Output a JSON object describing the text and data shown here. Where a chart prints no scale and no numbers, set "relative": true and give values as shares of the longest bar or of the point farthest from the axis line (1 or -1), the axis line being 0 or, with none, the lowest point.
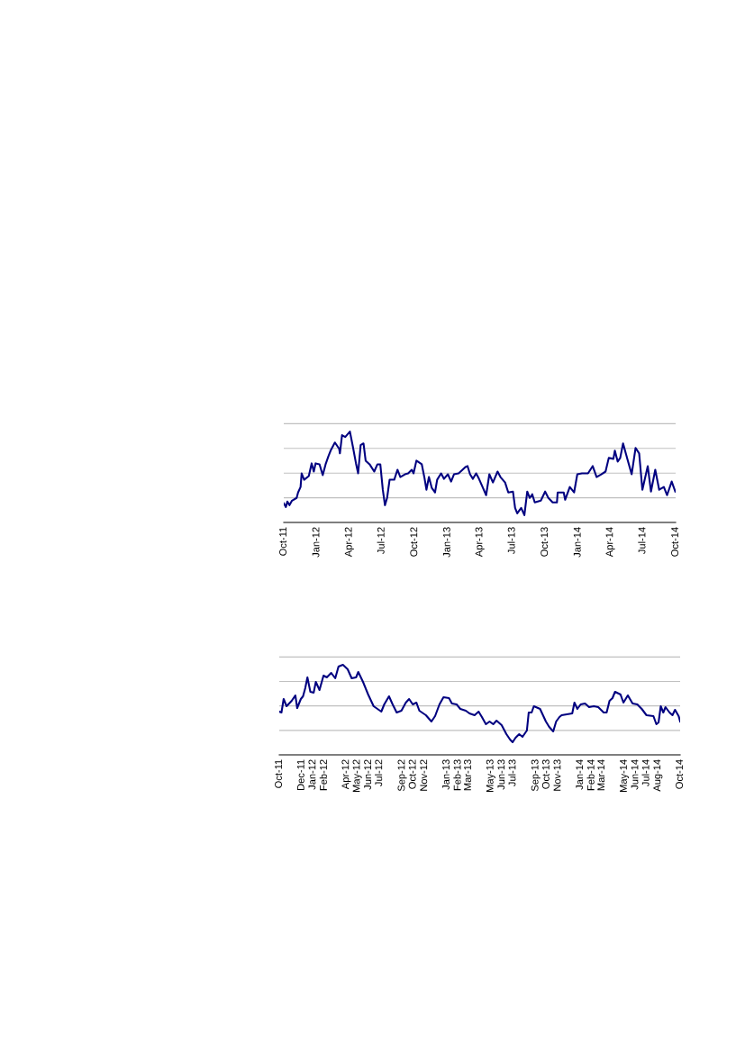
{
  "chart_data": [
    {
      "type": "line",
      "relative": true,
      "xlim": [
        "2011-10-01",
        "2014-10-01"
      ],
      "xticks": [
        {
          "value": "2011-10-01",
          "label": "Oct-11"
        },
        {
          "value": "2012-01-01",
          "label": "Jan-12"
        },
        {
          "value": "2012-04-01",
          "label": "Apr-12"
        },
        {
          "value": "2012-07-01",
          "label": "Jul-12"
        },
        {
          "value": "2012-10-01",
          "label": "Oct-12"
        },
        {
          "value": "2013-01-01",
          "label": "Jan-13"
        },
        {
          "value": "2013-04-01",
          "label": "Apr-13"
        },
        {
          "value": "2013-07-01",
          "label": "Jul-13"
        },
        {
          "value": "2013-10-01",
          "label": "Oct-13"
        },
        {
          "value": "2014-01-01",
          "label": "Jan-14"
        },
        {
          "value": "2014-04-01",
          "label": "Apr-14"
        },
        {
          "value": "2014-07-01",
          "label": "Jul-14"
        },
        {
          "value": "2014-10-01",
          "label": "Oct-14"
        }
      ],
      "tick_labels": "x",
      "series": [
        {
          "color": "#000080",
          "x": [
            "2011-10-01",
            "2011-10-07",
            "2011-10-11",
            "2011-10-17",
            "2011-10-24",
            "2011-11-06",
            "2011-11-10",
            "2011-11-17",
            "2011-11-20",
            "2011-11-27",
            "2011-12-10",
            "2011-12-18",
            "2011-12-24",
            "2011-12-29",
            "2012-01-09",
            "2012-01-18",
            "2012-01-26",
            "2012-02-03",
            "2012-02-09",
            "2012-02-21",
            "2012-03-04",
            "2012-03-06",
            "2012-03-12",
            "2012-03-21",
            "2012-04-03",
            "2012-04-11",
            "2012-04-20",
            "2012-04-26",
            "2012-05-03",
            "2012-05-11",
            "2012-05-17",
            "2012-05-28",
            "2012-06-10",
            "2012-06-19",
            "2012-06-27",
            "2012-07-04",
            "2012-07-10",
            "2012-07-16",
            "2012-07-23",
            "2012-08-05",
            "2012-08-14",
            "2012-08-22",
            "2012-09-04",
            "2012-09-13",
            "2012-09-23",
            "2012-09-28",
            "2012-10-06",
            "2012-10-21",
            "2012-10-29",
            "2012-11-03",
            "2012-11-10",
            "2012-11-18",
            "2012-11-27",
            "2012-12-03",
            "2012-12-14",
            "2012-12-22",
            "2013-01-02",
            "2013-01-11",
            "2013-01-19",
            "2013-02-01",
            "2013-02-12",
            "2013-02-20",
            "2013-02-26",
            "2013-03-05",
            "2013-03-13",
            "2013-03-22",
            "2013-03-30",
            "2013-04-09",
            "2013-04-19",
            "2013-04-28",
            "2013-05-08",
            "2013-05-21",
            "2013-05-29",
            "2013-06-11",
            "2013-06-20",
            "2013-07-03",
            "2013-07-09",
            "2013-07-15",
            "2013-07-26",
            "2013-08-04",
            "2013-08-12",
            "2013-08-19",
            "2013-08-26",
            "2013-09-02",
            "2013-09-19",
            "2013-10-01",
            "2013-10-10",
            "2013-10-22",
            "2013-11-03",
            "2013-11-05",
            "2013-11-22",
            "2013-11-26",
            "2013-12-09",
            "2013-12-21",
            "2013-12-30",
            "2014-01-12",
            "2014-01-29",
            "2014-02-11",
            "2014-02-22",
            "2014-03-07",
            "2014-03-19",
            "2014-03-28",
            "2014-04-10",
            "2014-04-14",
            "2014-04-22",
            "2014-04-29",
            "2014-05-07",
            "2014-05-16",
            "2014-05-31",
            "2014-06-11",
            "2014-06-21",
            "2014-06-30",
            "2014-07-15",
            "2014-07-24",
            "2014-08-05",
            "2014-08-16",
            "2014-08-29",
            "2014-09-07",
            "2014-09-20",
            "2014-09-30"
          ],
          "values": [
            0.21,
            0.17,
            0.23,
            0.19,
            0.24,
            0.27,
            0.33,
            0.39,
            0.54,
            0.47,
            0.51,
            0.65,
            0.56,
            0.65,
            0.64,
            0.52,
            0.64,
            0.73,
            0.79,
            0.88,
            0.81,
            0.76,
            0.96,
            0.94,
            1.0,
            0.84,
            0.65,
            0.54,
            0.85,
            0.87,
            0.68,
            0.64,
            0.56,
            0.64,
            0.64,
            0.36,
            0.19,
            0.27,
            0.47,
            0.47,
            0.58,
            0.5,
            0.53,
            0.54,
            0.58,
            0.54,
            0.68,
            0.64,
            0.48,
            0.36,
            0.5,
            0.38,
            0.33,
            0.47,
            0.54,
            0.48,
            0.53,
            0.45,
            0.53,
            0.54,
            0.58,
            0.61,
            0.62,
            0.53,
            0.48,
            0.54,
            0.48,
            0.39,
            0.3,
            0.53,
            0.44,
            0.56,
            0.5,
            0.44,
            0.33,
            0.34,
            0.16,
            0.1,
            0.16,
            0.08,
            0.34,
            0.27,
            0.31,
            0.22,
            0.24,
            0.34,
            0.27,
            0.22,
            0.22,
            0.33,
            0.33,
            0.25,
            0.39,
            0.33,
            0.53,
            0.54,
            0.54,
            0.62,
            0.5,
            0.53,
            0.56,
            0.71,
            0.7,
            0.79,
            0.67,
            0.71,
            0.87,
            0.74,
            0.53,
            0.82,
            0.76,
            0.36,
            0.62,
            0.34,
            0.58,
            0.36,
            0.39,
            0.3,
            0.45,
            0.34
          ]
        }
      ]
    },
    {
      "type": "line",
      "relative": true,
      "xlim": [
        "2011-10-01",
        "2014-10-01"
      ],
      "xticks": [
        {
          "value": "2011-10-01",
          "label": "Oct-11"
        },
        {
          "value": "2011-12-01",
          "label": "Dec-11"
        },
        {
          "value": "2012-01-01",
          "label": "Jan-12"
        },
        {
          "value": "2012-02-01",
          "label": "Feb-12"
        },
        {
          "value": "2012-04-01",
          "label": "Apr-12"
        },
        {
          "value": "2012-05-01",
          "label": "May-12"
        },
        {
          "value": "2012-06-01",
          "label": "Jun-12"
        },
        {
          "value": "2012-07-01",
          "label": "Jul-12"
        },
        {
          "value": "2012-09-01",
          "label": "Sep-12"
        },
        {
          "value": "2012-10-01",
          "label": "Oct-12"
        },
        {
          "value": "2012-11-01",
          "label": "Nov-12"
        },
        {
          "value": "2013-01-01",
          "label": "Jan-13"
        },
        {
          "value": "2013-02-01",
          "label": "Feb-13"
        },
        {
          "value": "2013-03-01",
          "label": "Mar-13"
        },
        {
          "value": "2013-05-01",
          "label": "May-13"
        },
        {
          "value": "2013-06-01",
          "label": "Jun-13"
        },
        {
          "value": "2013-07-01",
          "label": "Jul-13"
        },
        {
          "value": "2013-09-01",
          "label": "Sep-13"
        },
        {
          "value": "2013-10-01",
          "label": "Oct-13"
        },
        {
          "value": "2013-11-01",
          "label": "Nov-13"
        },
        {
          "value": "2014-01-01",
          "label": "Jan-14"
        },
        {
          "value": "2014-02-01",
          "label": "Feb-14"
        },
        {
          "value": "2014-03-01",
          "label": "Mar-14"
        },
        {
          "value": "2014-05-01",
          "label": "May-14"
        },
        {
          "value": "2014-06-01",
          "label": "Jun-14"
        },
        {
          "value": "2014-07-01",
          "label": "Jul-14"
        },
        {
          "value": "2014-08-01",
          "label": "Aug-14"
        },
        {
          "value": "2014-10-01",
          "label": "Oct-14"
        }
      ],
      "tick_labels": "x",
      "series": [
        {
          "color": "#000080",
          "x": [
            "2011-10-01",
            "2011-10-07",
            "2011-10-13",
            "2011-10-21",
            "2011-11-04",
            "2011-11-14",
            "2011-11-19",
            "2011-11-29",
            "2011-12-05",
            "2011-12-11",
            "2011-12-17",
            "2011-12-25",
            "2012-01-03",
            "2012-01-09",
            "2012-01-19",
            "2012-01-30",
            "2012-02-08",
            "2012-02-20",
            "2012-03-02",
            "2012-03-11",
            "2012-03-23",
            "2012-04-05",
            "2012-04-16",
            "2012-04-28",
            "2012-05-04",
            "2012-05-17",
            "2012-05-31",
            "2012-06-15",
            "2012-07-06",
            "2012-07-14",
            "2012-07-27",
            "2012-08-06",
            "2012-08-17",
            "2012-08-30",
            "2012-09-11",
            "2012-09-20",
            "2012-09-30",
            "2012-10-10",
            "2012-10-18",
            "2012-11-05",
            "2012-11-20",
            "2012-11-30",
            "2012-12-12",
            "2012-12-23",
            "2013-01-07",
            "2013-01-15",
            "2013-01-28",
            "2013-02-07",
            "2013-02-22",
            "2013-03-04",
            "2013-03-18",
            "2013-03-29",
            "2013-04-07",
            "2013-04-18",
            "2013-04-28",
            "2013-05-08",
            "2013-05-17",
            "2013-05-31",
            "2013-06-13",
            "2013-06-23",
            "2013-06-30",
            "2013-07-08",
            "2013-07-18",
            "2013-07-27",
            "2013-08-08",
            "2013-08-13",
            "2013-08-21",
            "2013-08-27",
            "2013-09-13",
            "2013-09-29",
            "2013-10-08",
            "2013-10-19",
            "2013-10-27",
            "2013-11-05",
            "2013-11-11",
            "2013-12-10",
            "2013-12-16",
            "2013-12-24",
            "2014-01-02",
            "2014-01-14",
            "2014-01-25",
            "2014-02-07",
            "2014-02-19",
            "2014-03-06",
            "2014-03-14",
            "2014-03-22",
            "2014-03-30",
            "2014-04-06",
            "2014-04-21",
            "2014-04-29",
            "2014-05-11",
            "2014-05-24",
            "2014-06-06",
            "2014-06-18",
            "2014-07-01",
            "2014-07-20",
            "2014-07-28",
            "2014-08-03",
            "2014-08-09",
            "2014-08-16",
            "2014-08-22",
            "2014-09-02",
            "2014-09-10",
            "2014-09-17",
            "2014-09-27",
            "2014-10-01"
          ],
          "values": [
            0.48,
            0.47,
            0.62,
            0.54,
            0.6,
            0.66,
            0.52,
            0.62,
            0.65,
            0.74,
            0.86,
            0.7,
            0.69,
            0.81,
            0.72,
            0.88,
            0.86,
            0.91,
            0.85,
            0.98,
            1.0,
            0.95,
            0.85,
            0.86,
            0.92,
            0.81,
            0.67,
            0.54,
            0.48,
            0.56,
            0.65,
            0.56,
            0.47,
            0.49,
            0.58,
            0.62,
            0.56,
            0.58,
            0.49,
            0.44,
            0.37,
            0.43,
            0.56,
            0.64,
            0.63,
            0.57,
            0.56,
            0.51,
            0.49,
            0.46,
            0.44,
            0.48,
            0.42,
            0.34,
            0.37,
            0.34,
            0.38,
            0.33,
            0.23,
            0.17,
            0.14,
            0.19,
            0.23,
            0.2,
            0.27,
            0.47,
            0.47,
            0.54,
            0.51,
            0.37,
            0.31,
            0.26,
            0.37,
            0.42,
            0.44,
            0.46,
            0.58,
            0.51,
            0.56,
            0.57,
            0.53,
            0.54,
            0.53,
            0.47,
            0.47,
            0.6,
            0.63,
            0.7,
            0.67,
            0.58,
            0.66,
            0.57,
            0.56,
            0.51,
            0.44,
            0.43,
            0.34,
            0.36,
            0.54,
            0.47,
            0.53,
            0.47,
            0.44,
            0.5,
            0.43,
            0.37
          ]
        }
      ]
    }
  ]
}
